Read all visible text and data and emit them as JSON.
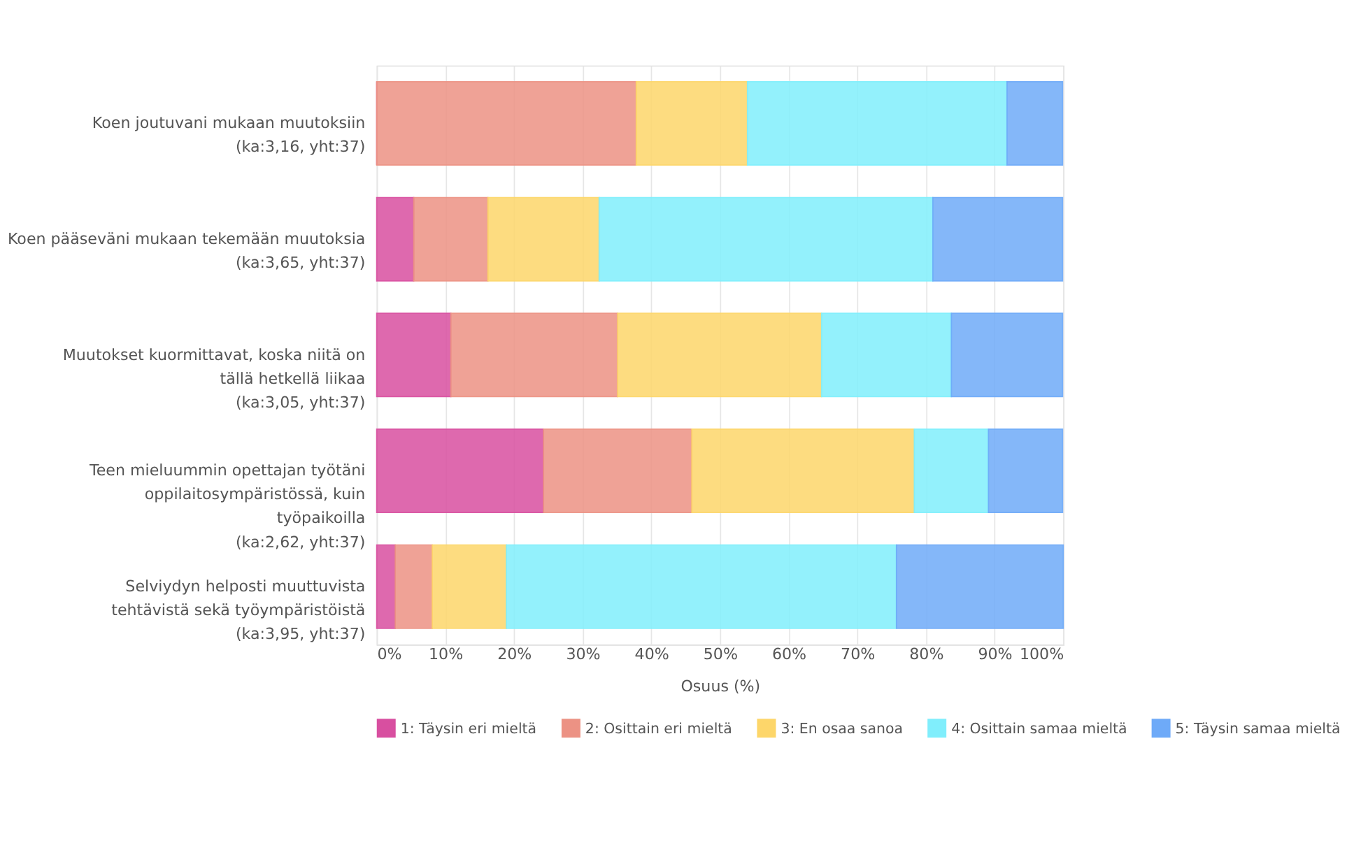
{
  "chart_data": {
    "type": "bar",
    "orientation": "horizontal",
    "stacked": true,
    "xlabel": "Osuus (%)",
    "categories": [
      "Koen joutuvani mukaan muutoksiin\n(ka:3,16, yht:37)",
      "Koen pääseväni mukaan tekemään muutoksia\n(ka:3,65, yht:37)",
      "Muutokset kuormittavat, koska niitä on\ntällä hetkellä liikaa\n(ka:3,05, yht:37)",
      "Teen mieluummin opettajan työtäni\noppilaitosympäristössä, kuin\ntyöpaikoilla\n(ka:2,62, yht:37)",
      "Selviydyn helposti muuttuvista\ntehtävistä sekä työympäristöistä\n(ka:3,95, yht:37)"
    ],
    "series": [
      {
        "name": "1: Täysin eri mieltä",
        "color": "#d84fa0",
        "values": [
          0,
          5.4,
          10.8,
          24.3,
          2.7
        ]
      },
      {
        "name": "2: Osittain eri mieltä",
        "color": "#ec9284",
        "values": [
          37.8,
          10.8,
          24.3,
          21.6,
          5.4
        ]
      },
      {
        "name": "3: En osaa sanoa",
        "color": "#fdd66a",
        "values": [
          16.2,
          16.2,
          29.7,
          32.4,
          10.8
        ]
      },
      {
        "name": "4: Osittain samaa mieltä",
        "color": "#80eefc",
        "values": [
          37.8,
          48.6,
          18.9,
          10.8,
          56.8
        ]
      },
      {
        "name": "5: Täysin samaa mieltä",
        "color": "#6eaaf8",
        "values": [
          8.1,
          18.9,
          16.2,
          10.8,
          24.3
        ]
      }
    ],
    "xlim": [
      0,
      100
    ],
    "xticks": [
      {
        "value": 0,
        "label": "0%"
      },
      {
        "value": 10,
        "label": "10%"
      },
      {
        "value": 20,
        "label": "20%"
      },
      {
        "value": 30,
        "label": "30%"
      },
      {
        "value": 40,
        "label": "40%"
      },
      {
        "value": 50,
        "label": "50%"
      },
      {
        "value": 60,
        "label": "60%"
      },
      {
        "value": 70,
        "label": "70%"
      },
      {
        "value": 80,
        "label": "80%"
      },
      {
        "value": 90,
        "label": "90%"
      },
      {
        "value": 100,
        "label": "100%"
      }
    ],
    "grid": "x",
    "legend": "bottom"
  }
}
